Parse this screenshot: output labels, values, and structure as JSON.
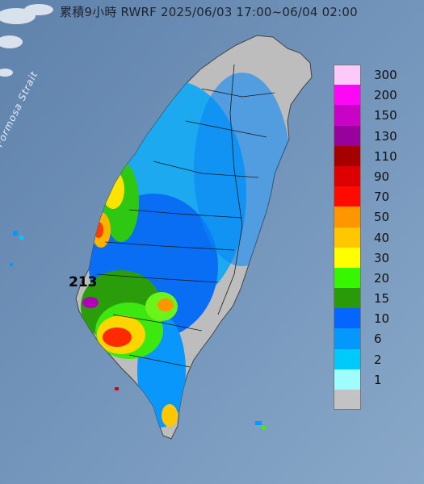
{
  "title": "累積9小時 RWRF 2025/06/03 17:00~06/04 02:00",
  "sea_label": "Formosa Strait",
  "max_value_label": "213",
  "legend": [
    {
      "label": "300",
      "color": "#fdc9f9"
    },
    {
      "label": "200",
      "color": "#fc08f7"
    },
    {
      "label": "150",
      "color": "#c803c6"
    },
    {
      "label": "130",
      "color": "#97019c"
    },
    {
      "label": "110",
      "color": "#a50000"
    },
    {
      "label": "90",
      "color": "#dc0000"
    },
    {
      "label": "70",
      "color": "#ff0a00"
    },
    {
      "label": "50",
      "color": "#ff9600"
    },
    {
      "label": "40",
      "color": "#ffc700"
    },
    {
      "label": "30",
      "color": "#ffff00"
    },
    {
      "label": "20",
      "color": "#37f700"
    },
    {
      "label": "15",
      "color": "#299b08"
    },
    {
      "label": "10",
      "color": "#0465ff"
    },
    {
      "label": "6",
      "color": "#0497fc"
    },
    {
      "label": "2",
      "color": "#00c9fb"
    },
    {
      "label": "1",
      "color": "#9ffdff"
    },
    {
      "label": "",
      "color": "#c3c3c3"
    }
  ]
}
